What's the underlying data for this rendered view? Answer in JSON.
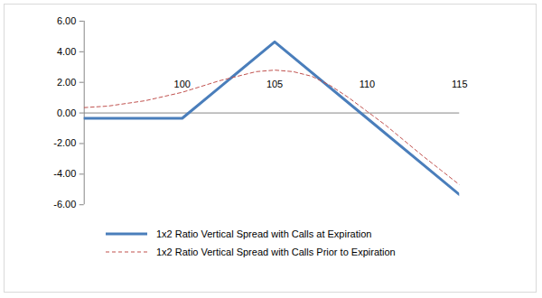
{
  "chart_data": {
    "type": "line",
    "xlim": [
      94.7,
      115
    ],
    "xticks": [
      100,
      105,
      110,
      115
    ],
    "ylim": [
      -6,
      6
    ],
    "yticks": [
      {
        "value": -6,
        "label": "-6.00"
      },
      {
        "value": -4,
        "label": "-4.00"
      },
      {
        "value": -2,
        "label": "-2.00"
      },
      {
        "value": 0,
        "label": "0.00"
      },
      {
        "value": 2,
        "label": "2.00"
      },
      {
        "value": 4,
        "label": "4.00"
      },
      {
        "value": 6,
        "label": "6.00"
      }
    ],
    "grid": false,
    "legend": "bottom",
    "series": [
      {
        "name": "1x2 Ratio Vertical Spread with Calls at Expiration",
        "color": "#4a7ebb",
        "line_style": "solid",
        "x": [
          94.7,
          100,
          105,
          110,
          115
        ],
        "values": [
          -0.35,
          -0.35,
          4.65,
          -0.35,
          -5.35
        ]
      },
      {
        "name": "1x2 Ratio Vertical Spread with Calls Prior to Expiration",
        "color": "#c0504d",
        "line_style": "dashed",
        "x": [
          94.7,
          96,
          98,
          100,
          102,
          104,
          105,
          106,
          107,
          108,
          109,
          110,
          111,
          112,
          113,
          114,
          115
        ],
        "values": [
          0.35,
          0.45,
          0.8,
          1.35,
          2.1,
          2.7,
          2.8,
          2.7,
          2.4,
          1.8,
          1.0,
          0.1,
          -0.8,
          -1.8,
          -2.8,
          -3.75,
          -4.7
        ]
      }
    ]
  }
}
